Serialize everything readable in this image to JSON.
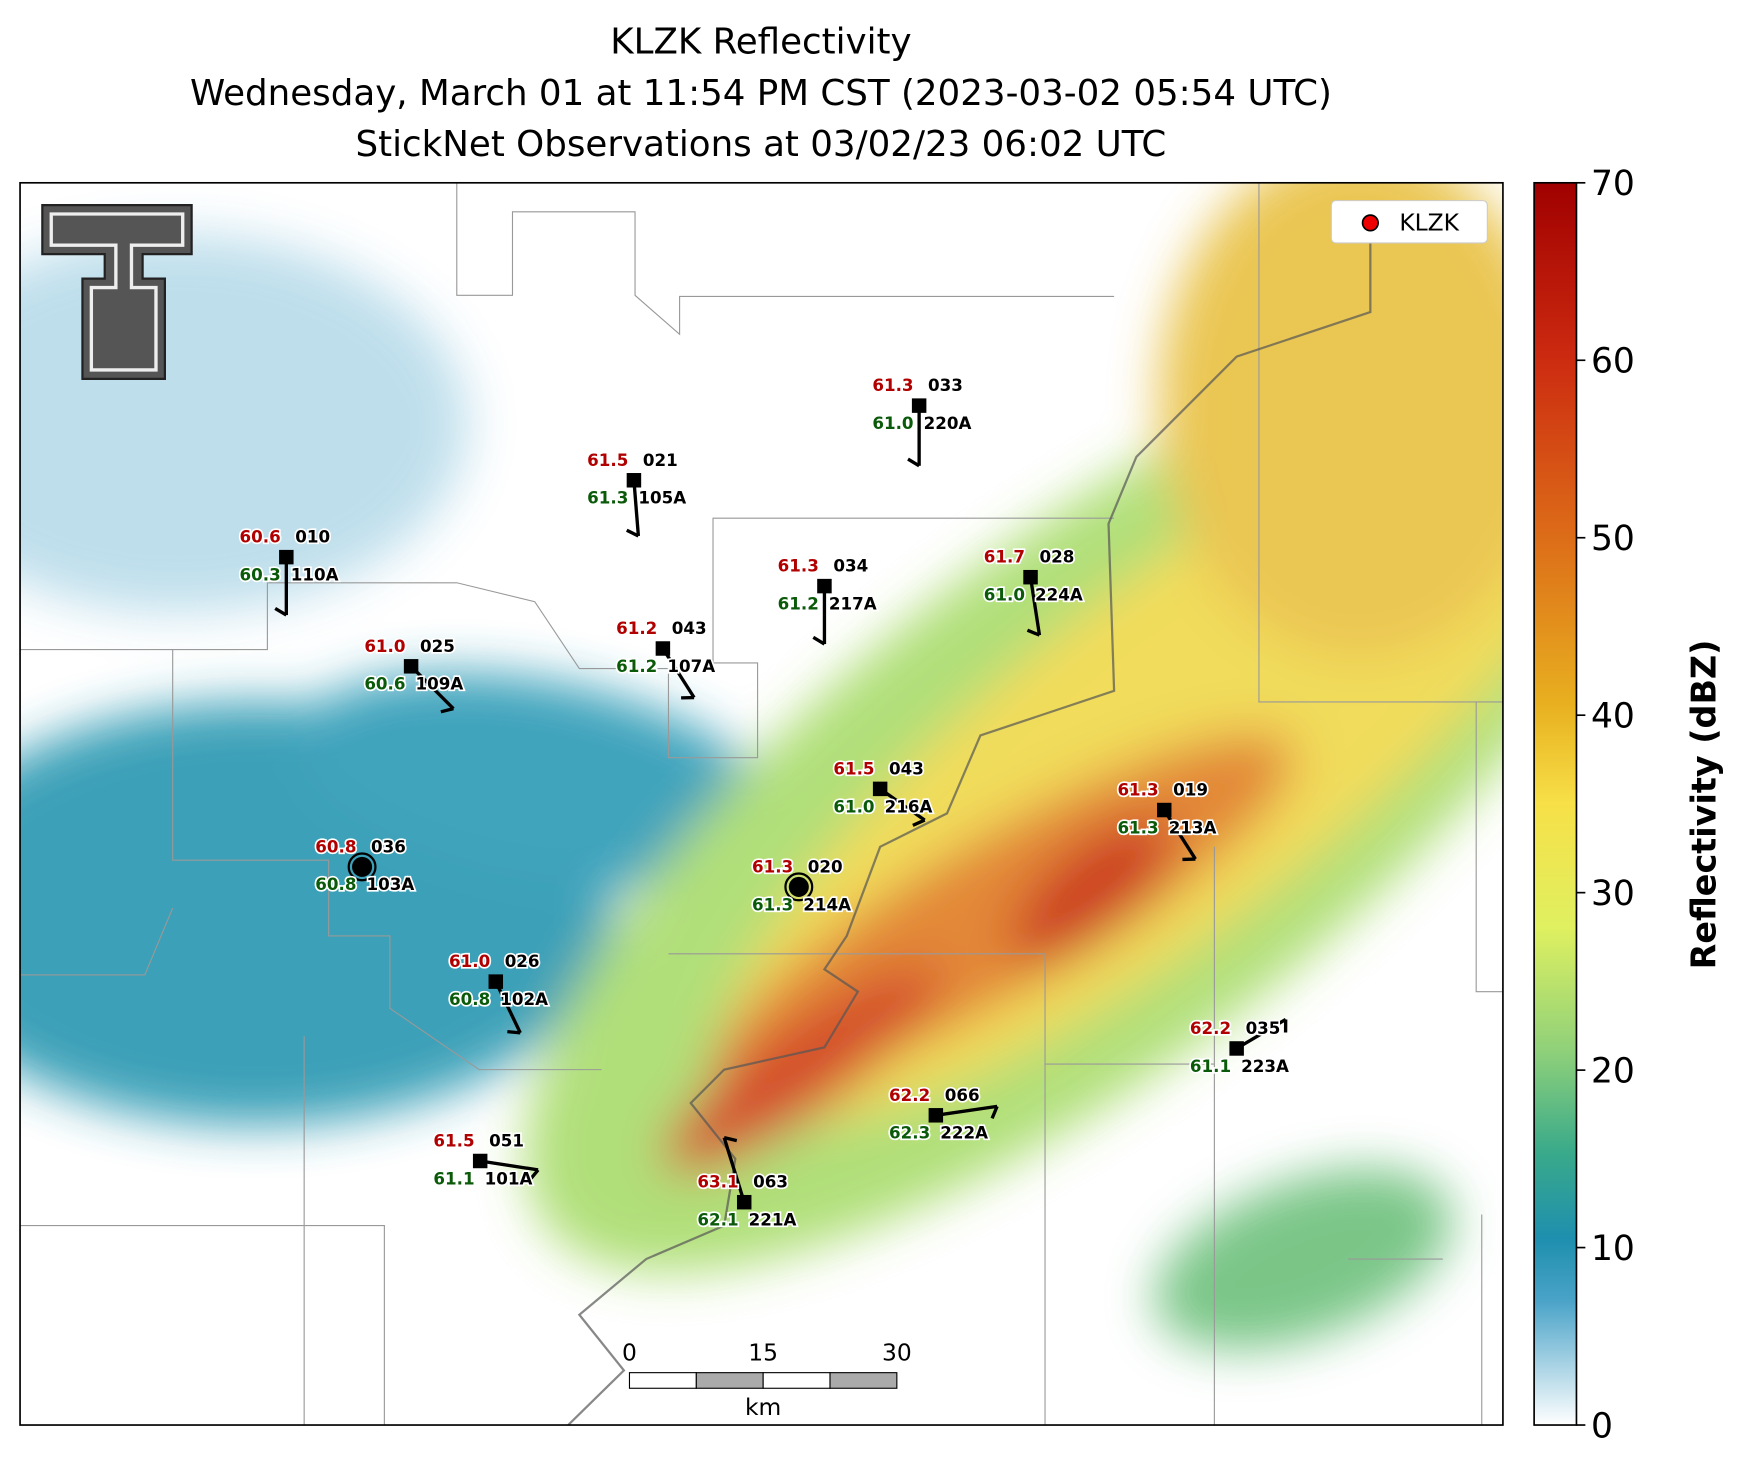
{
  "title": [
    "KLZK Reflectivity",
    "Wednesday, March 01 at 11:54 PM CST (2023-03-02 05:54 UTC)",
    "StickNet Observations at 03/02/23 06:02 UTC"
  ],
  "legend": {
    "label": "KLZK"
  },
  "colorbar": {
    "label": "Reflectivity (dBZ)",
    "lim": [
      0,
      70
    ],
    "ticks": [
      0,
      10,
      20,
      30,
      40,
      50,
      60,
      70
    ]
  },
  "scale_bar": {
    "ticks": [
      0,
      15,
      30
    ],
    "unit": "km"
  },
  "stations": [
    {
      "temp": "61.3",
      "dew": "61.0",
      "num": "033",
      "id": "220A"
    },
    {
      "temp": "61.5",
      "dew": "61.3",
      "num": "021",
      "id": "105A"
    },
    {
      "temp": "60.6",
      "dew": "60.3",
      "num": "010",
      "id": "110A"
    },
    {
      "temp": "61.3",
      "dew": "61.2",
      "num": "034",
      "id": "217A"
    },
    {
      "temp": "61.7",
      "dew": "61.0",
      "num": "028",
      "id": "224A"
    },
    {
      "temp": "61.2",
      "dew": "61.2",
      "num": "043",
      "id": "107A"
    },
    {
      "temp": "61.0",
      "dew": "60.6",
      "num": "025",
      "id": "109A"
    },
    {
      "temp": "61.5",
      "dew": "61.0",
      "num": "043",
      "id": "216A"
    },
    {
      "temp": "61.3",
      "dew": "61.3",
      "num": "019",
      "id": "213A"
    },
    {
      "temp": "60.8",
      "dew": "60.8",
      "num": "036",
      "id": "103A"
    },
    {
      "temp": "61.3",
      "dew": "61.3",
      "num": "020",
      "id": "214A"
    },
    {
      "temp": "61.0",
      "dew": "60.8",
      "num": "026",
      "id": "102A"
    },
    {
      "temp": "62.2",
      "dew": "61.1",
      "num": "035",
      "id": "223A"
    },
    {
      "temp": "62.2",
      "dew": "62.3",
      "num": "066",
      "id": "222A"
    },
    {
      "temp": "61.5",
      "dew": "61.1",
      "num": "051",
      "id": "101A"
    },
    {
      "temp": "63.1",
      "dew": "62.1",
      "num": "063",
      "id": "221A"
    }
  ]
}
